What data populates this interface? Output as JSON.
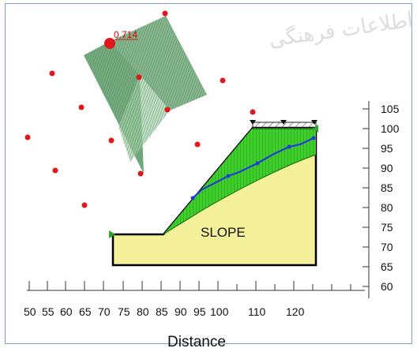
{
  "factor_of_safety": "0.714",
  "slope_label": "SLOPE",
  "x_axis": {
    "title": "Distance",
    "ticks": [
      "50",
      "55",
      "60",
      "65",
      "70",
      "75",
      "80",
      "85",
      "90",
      "95",
      "100",
      "110",
      "120"
    ]
  },
  "y_axis": {
    "ticks": [
      "105",
      "100",
      "95",
      "90",
      "85",
      "80",
      "75",
      "70",
      "65",
      "60"
    ]
  },
  "watermark": "اطلاعات فرهنگی",
  "colors": {
    "slope_fill": "#f5f19a",
    "failure_zone": "#3ecf2a",
    "fan": "#5f9e6a",
    "grid_points": "#e0181a",
    "water_table": "#1f3ed8",
    "frame": "#7da0c8"
  },
  "icons": {
    "surcharge": "hatched-load-icon",
    "support_markers": "green-triangle-icon",
    "water_markers": "down-triangle-icon"
  }
}
